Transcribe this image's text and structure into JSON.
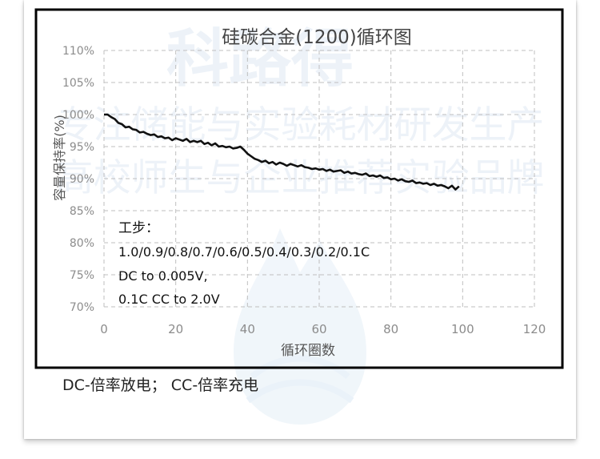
{
  "colors": {
    "line": "#111111",
    "grid": "#bfbfbf",
    "tick_text": "#8c8c8c",
    "axis_label": "#555555",
    "title": "#444444",
    "frame": "#000000",
    "watermark": "#dfe9f4"
  },
  "watermark": {
    "line1": "科路得",
    "line2": "专注储能与实验耗材研发生产",
    "line3": "高校师生与企业推荐实验品牌"
  },
  "annotation": {
    "line1": "工步：",
    "line2": "1.0/0.9/0.8/0.7/0.6/0.5/0.4/0.3/0.2/0.1C",
    "line3": "DC to 0.005V,",
    "line4": "0.1C CC to 2.0V"
  },
  "footnote": "DC-倍率放电；  CC-倍率充电",
  "chart_data": {
    "type": "line",
    "title": "硅碳合金(1200)循环图",
    "xlabel": "循环圈数",
    "ylabel": "容量保持率(%)",
    "xlim": [
      0,
      120
    ],
    "ylim": [
      70,
      110
    ],
    "x_ticks": [
      0,
      20,
      40,
      60,
      80,
      100,
      120
    ],
    "y_ticks": [
      70,
      75,
      80,
      85,
      90,
      95,
      100,
      105,
      110
    ],
    "y_tick_labels": [
      "70%",
      "75%",
      "80%",
      "85%",
      "90%",
      "95%",
      "100%",
      "105%",
      "110%"
    ],
    "grid": true,
    "series": [
      {
        "x": [
          0,
          1,
          2,
          3,
          4,
          5,
          6,
          7,
          8,
          9,
          10,
          11,
          12,
          13,
          14,
          15,
          16,
          17,
          18,
          19,
          20,
          21,
          22,
          23,
          24,
          25,
          26,
          27,
          28,
          29,
          30,
          31,
          32,
          33,
          34,
          35,
          36,
          37,
          38,
          39,
          40,
          41,
          42,
          43,
          44,
          45,
          46,
          47,
          48,
          49,
          50,
          51,
          52,
          53,
          54,
          55,
          56,
          57,
          58,
          59,
          60,
          61,
          62,
          63,
          64,
          65,
          66,
          67,
          68,
          69,
          70,
          71,
          72,
          73,
          74,
          75,
          76,
          77,
          78,
          79,
          80,
          81,
          82,
          83,
          84,
          85,
          86,
          87,
          88,
          89,
          90,
          91,
          92,
          93,
          94,
          95,
          96,
          97,
          98,
          99
        ],
        "values": [
          100.0,
          100.0,
          99.6,
          99.3,
          98.7,
          98.5,
          98.0,
          98.1,
          97.7,
          97.6,
          97.2,
          97.3,
          97.0,
          96.8,
          96.9,
          96.5,
          96.6,
          96.3,
          96.4,
          96.0,
          96.3,
          96.1,
          95.9,
          96.2,
          95.7,
          95.9,
          95.7,
          95.9,
          95.4,
          95.6,
          95.2,
          95.5,
          95.0,
          95.1,
          94.9,
          95.0,
          94.7,
          94.8,
          95.0,
          94.5,
          93.9,
          93.5,
          93.1,
          92.9,
          92.6,
          92.8,
          92.4,
          92.6,
          92.2,
          92.5,
          92.3,
          92.0,
          92.3,
          92.1,
          91.9,
          92.1,
          91.8,
          91.7,
          91.5,
          91.6,
          91.4,
          91.5,
          91.2,
          91.4,
          91.1,
          91.2,
          91.3,
          90.9,
          91.1,
          90.8,
          90.9,
          90.7,
          90.6,
          90.8,
          90.4,
          90.5,
          90.3,
          90.5,
          90.1,
          90.2,
          89.9,
          90.0,
          89.7,
          89.9,
          89.6,
          89.5,
          89.7,
          89.3,
          89.4,
          89.2,
          89.3,
          89.0,
          89.2,
          88.9,
          89.0,
          88.8,
          88.5,
          88.9,
          88.3,
          88.8
        ]
      }
    ]
  }
}
